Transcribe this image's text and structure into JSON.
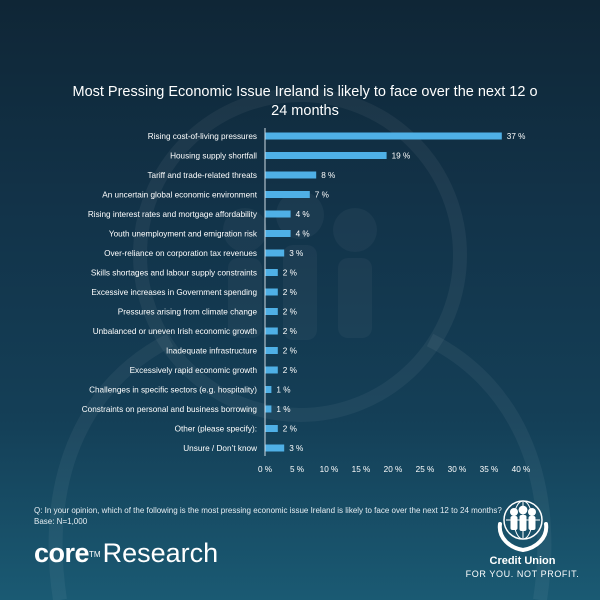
{
  "chart_data": {
    "type": "bar",
    "orientation": "horizontal",
    "title": "Most Pressing Economic Issue Ireland is likely to face over the next 12 o 24 months",
    "categories": [
      "Rising cost-of-living pressures",
      "Housing supply shortfall",
      "Tariff and trade-related threats",
      "An uncertain global economic environment",
      "Rising interest rates and mortgage affordability",
      "Youth unemployment and emigration risk",
      "Over-reliance on corporation tax revenues",
      "Skills shortages and labour supply constraints",
      "Excessive increases in Government spending",
      "Pressures arising from climate change",
      "Unbalanced or uneven Irish economic growth",
      "Inadequate infrastructure",
      "Excessively rapid economic growth",
      "Challenges in specific sectors (e.g. hospitality)",
      "Constraints on personal and business borrowing",
      "Other (please specify):",
      "Unsure / Don’t know"
    ],
    "values": [
      37,
      19,
      8,
      7,
      4,
      4,
      3,
      2,
      2,
      2,
      2,
      2,
      2,
      1,
      1,
      2,
      3
    ],
    "value_labels": [
      "37 %",
      "19 %",
      "8 %",
      "7 %",
      "4 %",
      "4 %",
      "3 %",
      "2 %",
      "2 %",
      "2 %",
      "2 %",
      "2 %",
      "2 %",
      "1 %",
      "1 %",
      "2 %",
      "3 %"
    ],
    "xlim": [
      0,
      40
    ],
    "xticks": [
      "0 %",
      "5 %",
      "10 %",
      "15 %",
      "20 %",
      "25 %",
      "30 %",
      "35 %",
      "40 %"
    ],
    "grid": false,
    "bar_color": "#4fb0e6"
  },
  "footer": {
    "question": "Q: In your opinion, which of the following is the most pressing economic issue Ireland is likely to face over the next 12 to 24 months?",
    "base": "Base: N=1,000"
  },
  "brand": {
    "core_bold": "core",
    "core_tm": "TM",
    "core_light": "Research",
    "cu_name": "Credit Union",
    "cu_tagline": "FOR YOU. NOT PROFIT."
  }
}
